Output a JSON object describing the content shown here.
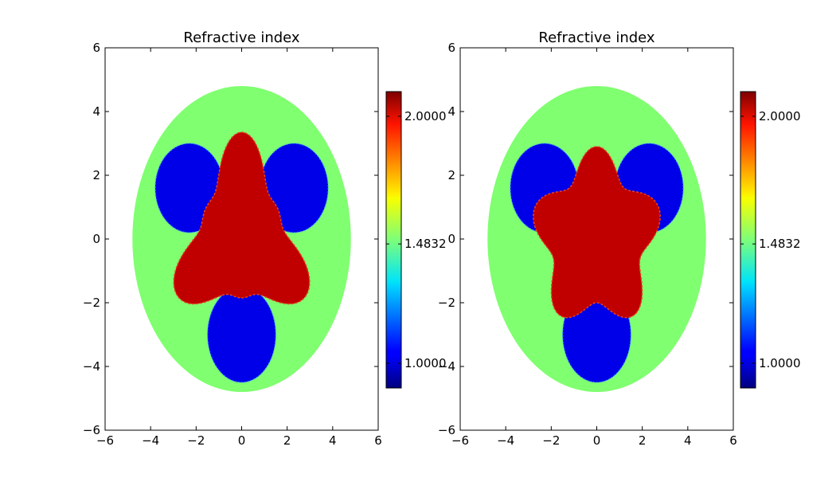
{
  "figure": {
    "background": "#ffffff"
  },
  "colors": {
    "low": "#0000e8",
    "mid": "#80ff70",
    "high": "#c00000",
    "colormap": "jet"
  },
  "chart_data": [
    {
      "type": "heatmap",
      "title": "Refractive index",
      "xlabel": "",
      "ylabel": "",
      "xlim": [
        -6,
        6
      ],
      "ylim": [
        -6,
        6
      ],
      "xticks": [
        "−6",
        "−4",
        "−2",
        "0",
        "2",
        "4",
        "6"
      ],
      "yticks": [
        "−6",
        "−4",
        "−2",
        "0",
        "2",
        "4",
        "6"
      ],
      "grid": false,
      "colorbar": {
        "min": 0.9,
        "max": 2.1,
        "ticks": [
          1.0,
          1.4832,
          2.0
        ],
        "tick_labels": [
          "1.0000",
          "1.4832",
          "2.0000"
        ]
      },
      "regions": [
        {
          "name": "background-ellipse",
          "shape": "ellipse",
          "center": [
            0,
            0
          ],
          "semi_axes": [
            4.8,
            4.8
          ],
          "value": 1.4832
        },
        {
          "name": "lobe-left",
          "shape": "ellipse",
          "center": [
            -2.3,
            1.6
          ],
          "semi_axes": [
            1.5,
            1.4
          ],
          "value": 1.0
        },
        {
          "name": "lobe-right",
          "shape": "ellipse",
          "center": [
            2.3,
            1.6
          ],
          "semi_axes": [
            1.5,
            1.4
          ],
          "value": 1.0
        },
        {
          "name": "lobe-bottom",
          "shape": "ellipse",
          "center": [
            0,
            -3.0
          ],
          "semi_axes": [
            1.5,
            1.5
          ],
          "value": 1.0
        },
        {
          "name": "core",
          "shape": "star",
          "center": [
            0,
            0
          ],
          "value": 2.0
        }
      ]
    },
    {
      "type": "heatmap",
      "title": "Refractive index",
      "xlabel": "",
      "ylabel": "",
      "xlim": [
        -6,
        6
      ],
      "ylim": [
        -6,
        6
      ],
      "xticks": [
        "−6",
        "−4",
        "−2",
        "0",
        "2",
        "4",
        "6"
      ],
      "yticks": [
        "−6",
        "−4",
        "−2",
        "0",
        "2",
        "4",
        "6"
      ],
      "grid": false,
      "colorbar": {
        "min": 0.9,
        "max": 2.1,
        "ticks": [
          1.0,
          1.4832,
          2.0
        ],
        "tick_labels": [
          "1.0000",
          "1.4832",
          "2.0000"
        ]
      },
      "regions": [
        {
          "name": "background-ellipse",
          "shape": "ellipse",
          "center": [
            0,
            0
          ],
          "semi_axes": [
            4.8,
            4.8
          ],
          "value": 1.4832
        },
        {
          "name": "lobe-left",
          "shape": "ellipse",
          "center": [
            -2.3,
            1.6
          ],
          "semi_axes": [
            1.5,
            1.4
          ],
          "value": 1.0
        },
        {
          "name": "lobe-right",
          "shape": "ellipse",
          "center": [
            2.3,
            1.6
          ],
          "semi_axes": [
            1.5,
            1.4
          ],
          "value": 1.0
        },
        {
          "name": "lobe-bottom",
          "shape": "ellipse",
          "center": [
            0,
            -3.0
          ],
          "semi_axes": [
            1.5,
            1.5
          ],
          "value": 1.0
        },
        {
          "name": "core",
          "shape": "flower",
          "center": [
            0,
            0
          ],
          "value": 2.0
        }
      ]
    }
  ]
}
